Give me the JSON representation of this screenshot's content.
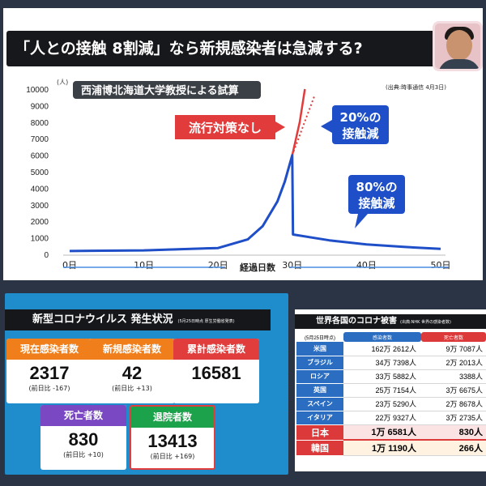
{
  "slide": {
    "title": "「人との接触 8割減」なら新規感染者は急減する?",
    "source": "(出典:時事通信 4月3日)"
  },
  "chart_data": {
    "type": "line",
    "title": "西浦博北海道大学教授による試算",
    "xlabel": "経過日数",
    "ylabel": "(人)",
    "xlim": [
      0,
      50
    ],
    "ylim": [
      0,
      10000
    ],
    "x_ticks": [
      "0日",
      "10日",
      "20日",
      "30日",
      "40日",
      "50日"
    ],
    "y_ticks": [
      "0",
      "1000",
      "2000",
      "3000",
      "4000",
      "5000",
      "6000",
      "7000",
      "8000",
      "9000",
      "10000"
    ],
    "grid": false,
    "series": [
      {
        "name": "流行対策なし",
        "color": "#e23b3b",
        "x": [
          0,
          10,
          20,
          24,
          26,
          28,
          29,
          30,
          31,
          31.7
        ],
        "y": [
          200,
          240,
          380,
          900,
          1700,
          3200,
          4400,
          6000,
          8000,
          10000
        ]
      },
      {
        "name": "20%の接触減",
        "color": "#e23b3b",
        "style": "dotted",
        "x": [
          30,
          31,
          32,
          33
        ],
        "y": [
          6000,
          7200,
          8400,
          9600
        ]
      },
      {
        "name": "80%の接触減",
        "color": "#1f4fc8",
        "x": [
          0,
          10,
          20,
          24,
          26,
          28,
          29,
          30,
          30.1,
          35,
          40,
          45,
          50
        ],
        "y": [
          200,
          240,
          380,
          900,
          1700,
          3200,
          4400,
          6000,
          1200,
          850,
          600,
          450,
          330
        ]
      }
    ],
    "annotations": [
      "流行対策なし",
      "20%の接触減",
      "80%の接触減"
    ]
  },
  "status": {
    "title": "新型コロナウイルス 発生状況",
    "as_of": "(5月25日時点 厚生労働省発表)",
    "cards": [
      {
        "label": "現在感染者数",
        "value": "2317",
        "sub": "(前日比 -167)",
        "color": "orange"
      },
      {
        "label": "新規感染者数",
        "value": "42",
        "sub": "(前日比 +13)",
        "color": "orange"
      },
      {
        "label": "累計感染者数",
        "value": "16581",
        "sub": "",
        "color": "red"
      },
      {
        "label": "死亡者数",
        "value": "830",
        "sub": "(前日比 +10)",
        "color": "purple"
      },
      {
        "label": "退院者数",
        "value": "13413",
        "sub": "(前日比 +169)",
        "color": "green"
      }
    ]
  },
  "world": {
    "title": "世界各国のコロナ被害",
    "source": "(出典:NHK 世界の感染者数)",
    "date": "(5月25日時点)",
    "col_infected": "感染者数",
    "col_deaths": "死亡者数",
    "rows": [
      {
        "country": "米国",
        "infected": "162万 2612人",
        "deaths": "9万 7087人"
      },
      {
        "country": "ブラジル",
        "infected": "34万 7398人",
        "deaths": "2万 2013人"
      },
      {
        "country": "ロシア",
        "infected": "33万 5882人",
        "deaths": "3388人"
      },
      {
        "country": "英国",
        "infected": "25万 7154人",
        "deaths": "3万 6675人"
      },
      {
        "country": "スペイン",
        "infected": "23万 5290人",
        "deaths": "2万 8678人"
      },
      {
        "country": "イタリア",
        "infected": "22万 9327人",
        "deaths": "3万 2735人"
      },
      {
        "country": "日本",
        "infected": "1万 6581人",
        "deaths": "830人"
      },
      {
        "country": "韓国",
        "infected": "1万 1190人",
        "deaths": "266人"
      }
    ]
  }
}
